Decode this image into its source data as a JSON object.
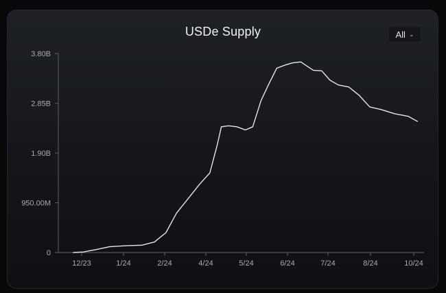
{
  "range_select": {
    "value": "All",
    "chevron_icon": "chevron-down-icon"
  },
  "chart_data": {
    "type": "line",
    "title": "USDe Supply",
    "xlabel": "",
    "ylabel": "",
    "x_tick_labels": [
      "12/23",
      "1/24",
      "2/24",
      "4/24",
      "5/24",
      "6/24",
      "7/24",
      "8/24",
      "10/24"
    ],
    "y_tick_labels": [
      "0",
      "950.00M",
      "1.90B",
      "2.85B",
      "3.80B"
    ],
    "y_tick_values": [
      0,
      950000000,
      1900000000,
      2850000000,
      3800000000
    ],
    "ylim": [
      0,
      3800000000
    ],
    "grid": false,
    "line_color": "#e8e8e8",
    "series": [
      {
        "x": [
          "2023-11-15",
          "2023-11-25",
          "2023-12-08",
          "2023-12-20",
          "2024-01-05",
          "2024-01-20",
          "2024-02-01",
          "2024-02-12",
          "2024-02-22",
          "2024-03-05",
          "2024-03-15",
          "2024-03-25",
          "2024-04-01",
          "2024-04-05",
          "2024-04-12",
          "2024-04-20",
          "2024-04-28",
          "2024-05-05",
          "2024-05-13",
          "2024-05-20",
          "2024-05-28",
          "2024-06-05",
          "2024-06-12",
          "2024-06-20",
          "2024-06-26",
          "2024-07-02",
          "2024-07-10",
          "2024-07-18",
          "2024-07-26",
          "2024-08-05",
          "2024-08-15",
          "2024-08-25",
          "2024-09-05",
          "2024-09-18",
          "2024-10-01",
          "2024-10-10"
        ],
        "y": [
          0,
          10000000,
          60000000,
          110000000,
          130000000,
          140000000,
          200000000,
          380000000,
          750000000,
          1050000000,
          1300000000,
          1520000000,
          2050000000,
          2400000000,
          2420000000,
          2400000000,
          2340000000,
          2400000000,
          2900000000,
          3200000000,
          3520000000,
          3580000000,
          3620000000,
          3640000000,
          3560000000,
          3480000000,
          3470000000,
          3290000000,
          3200000000,
          3160000000,
          3000000000,
          2780000000,
          2730000000,
          2650000000,
          2600000000,
          2500000000
        ]
      }
    ],
    "colors": {
      "axis": "#5b5e64",
      "tick_text": "#a9abaf",
      "line": "#e8e8e8"
    }
  }
}
